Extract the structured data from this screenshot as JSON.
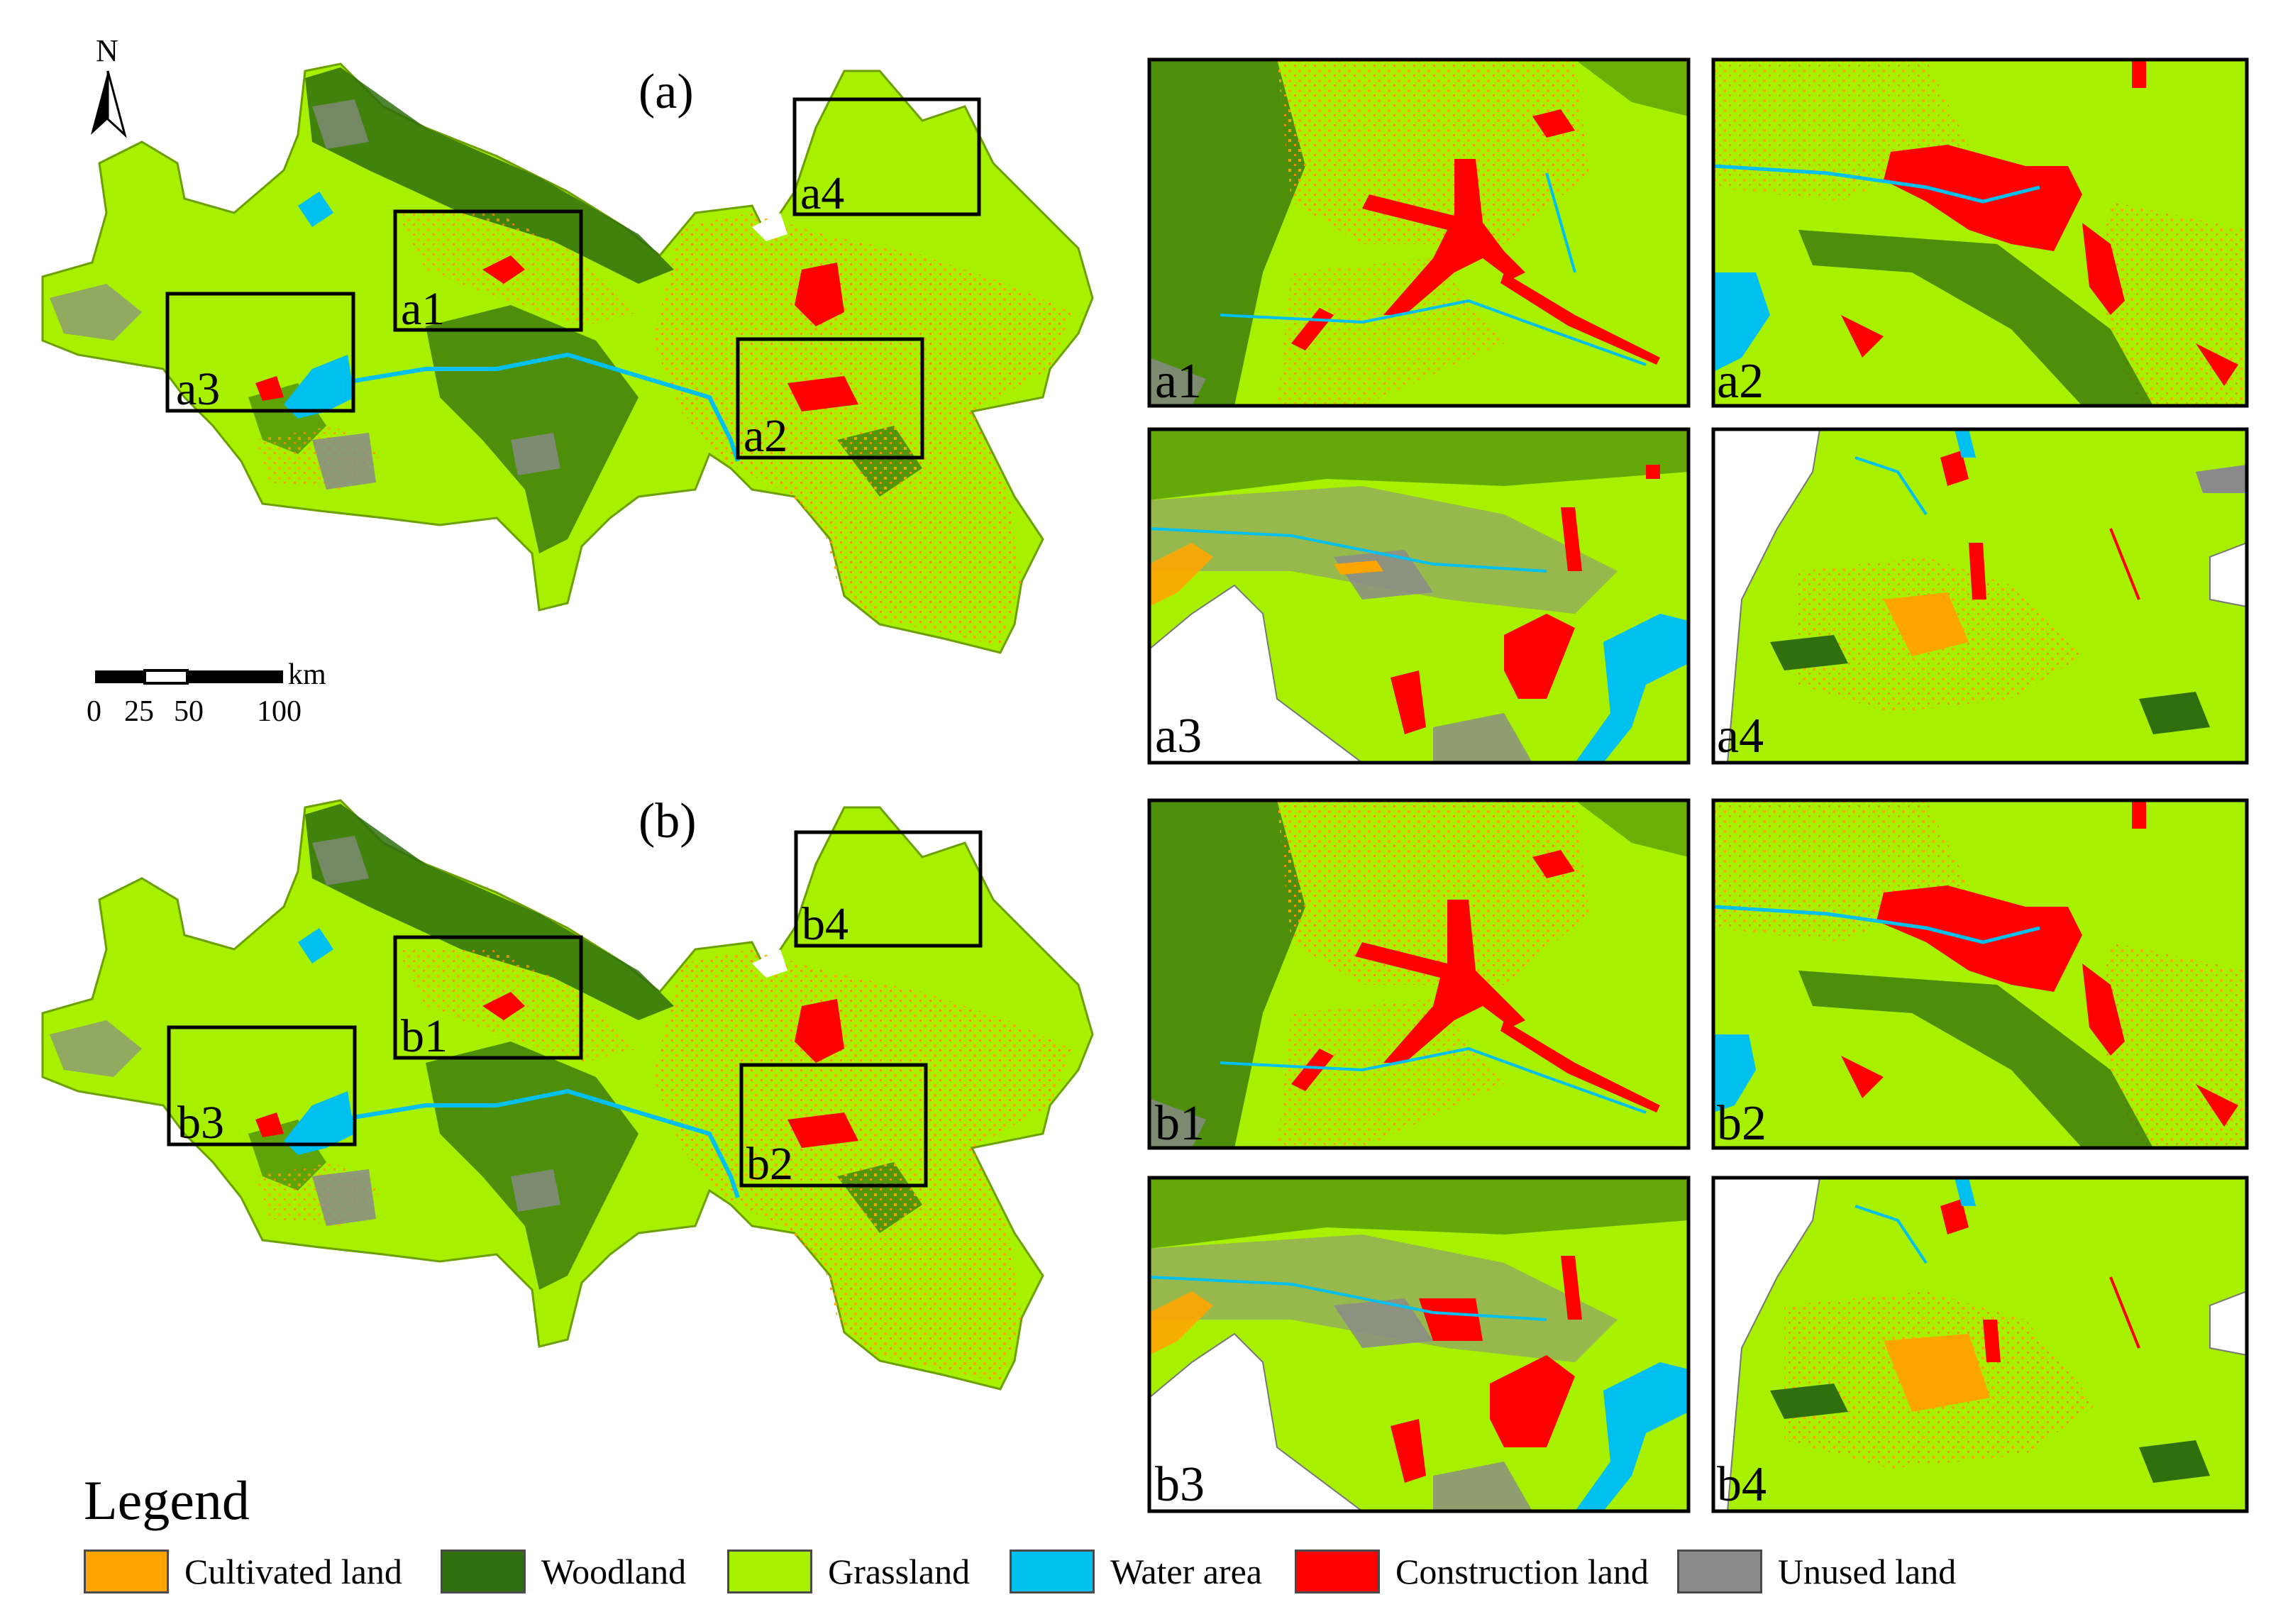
{
  "map_a": {
    "label": "(a)"
  },
  "map_b": {
    "label": "(b)"
  },
  "north_arrow": {
    "label": "N"
  },
  "scale_bar": {
    "unit": "km",
    "ticks": [
      "0",
      "25",
      "50",
      "100"
    ]
  },
  "insets_a": [
    "a1",
    "a2",
    "a3",
    "a4"
  ],
  "insets_b": [
    "b1",
    "b2",
    "b3",
    "b4"
  ],
  "legend": {
    "title": "Legend",
    "items": [
      {
        "label": "Cultivated land",
        "color": "#FFA500"
      },
      {
        "label": "Woodland",
        "color": "#2F6F0E"
      },
      {
        "label": "Grassland",
        "color": "#A6F000"
      },
      {
        "label": "Water area",
        "color": "#00C0F0"
      },
      {
        "label": "Construction land",
        "color": "#FF0000"
      },
      {
        "label": "Unused land",
        "color": "#8A8A8A"
      }
    ]
  }
}
